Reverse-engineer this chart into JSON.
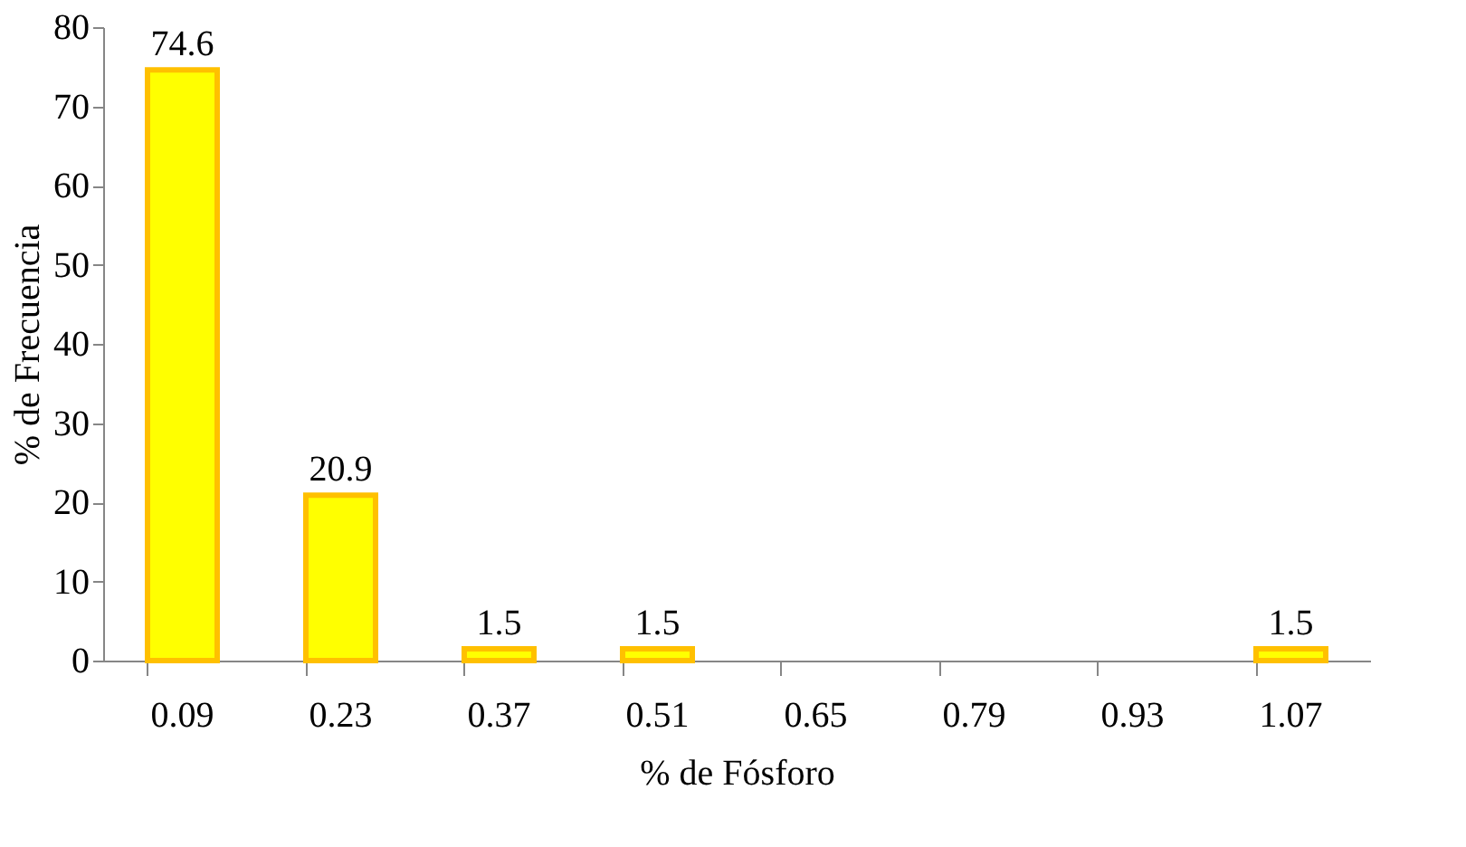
{
  "chart_data": {
    "type": "bar",
    "xlabel": "% de Fósforo",
    "ylabel": "% de Frecuencia",
    "categories": [
      "0.09",
      "0.23",
      "0.37",
      "0.51",
      "0.65",
      "0.79",
      "0.93",
      "1.07"
    ],
    "values": [
      74.6,
      20.9,
      1.5,
      1.5,
      0,
      0,
      0,
      1.5
    ],
    "value_labels": [
      "74.6",
      "20.9",
      "1.5",
      "1.5",
      null,
      null,
      null,
      "1.5"
    ],
    "color": "#ffff00",
    "ylim": [
      0,
      80
    ],
    "yticks": [
      0,
      10,
      20,
      30,
      40,
      50,
      60,
      70,
      80
    ],
    "grid": false
  }
}
